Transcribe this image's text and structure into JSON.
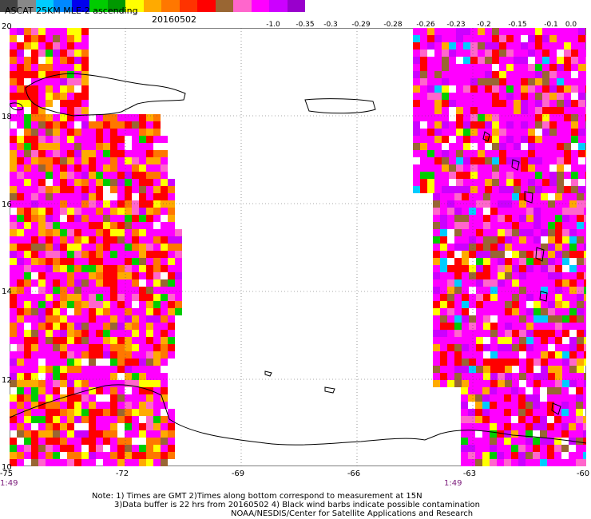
{
  "header": {
    "title": "ASCAT 25KM MLE-2 ascending",
    "date": "20160502"
  },
  "colorbar": {
    "colors": [
      "#444444",
      "#888888",
      "#00ccff",
      "#0088ff",
      "#0000ee",
      "#00cc00",
      "#009900",
      "#ffff00",
      "#ffaa00",
      "#ff7700",
      "#ff3300",
      "#ff0000",
      "#996633",
      "#ff66cc",
      "#ff00ff",
      "#cc00ff",
      "#9900cc"
    ],
    "ticks": [
      "-1.0",
      "-0.35",
      "-0.3",
      "-0.29",
      "-0.28",
      "-0.26",
      "-0.23",
      "-0.2",
      "-0.15",
      "-0.1",
      "0.0"
    ]
  },
  "axes": {
    "lat_labels": [
      "20",
      "18",
      "16",
      "14",
      "12",
      "10"
    ],
    "lon_labels": [
      "-75",
      "-72",
      "-69",
      "-66",
      "-63",
      "-60"
    ],
    "lat_range": [
      10,
      20
    ],
    "lon_range": [
      -75,
      -60
    ]
  },
  "times": {
    "left": "1:49",
    "right": "1:49"
  },
  "notes": {
    "line1": "Note: 1) Times are GMT 2)Times along bottom correspond to measurement at 15N",
    "line2": "3)Data buffer is 22 hrs from 20160502 4) Black wind barbs indicate possible contamination",
    "line3": "NOAA/NESDIS/Center for Satellite Applications and Research"
  }
}
